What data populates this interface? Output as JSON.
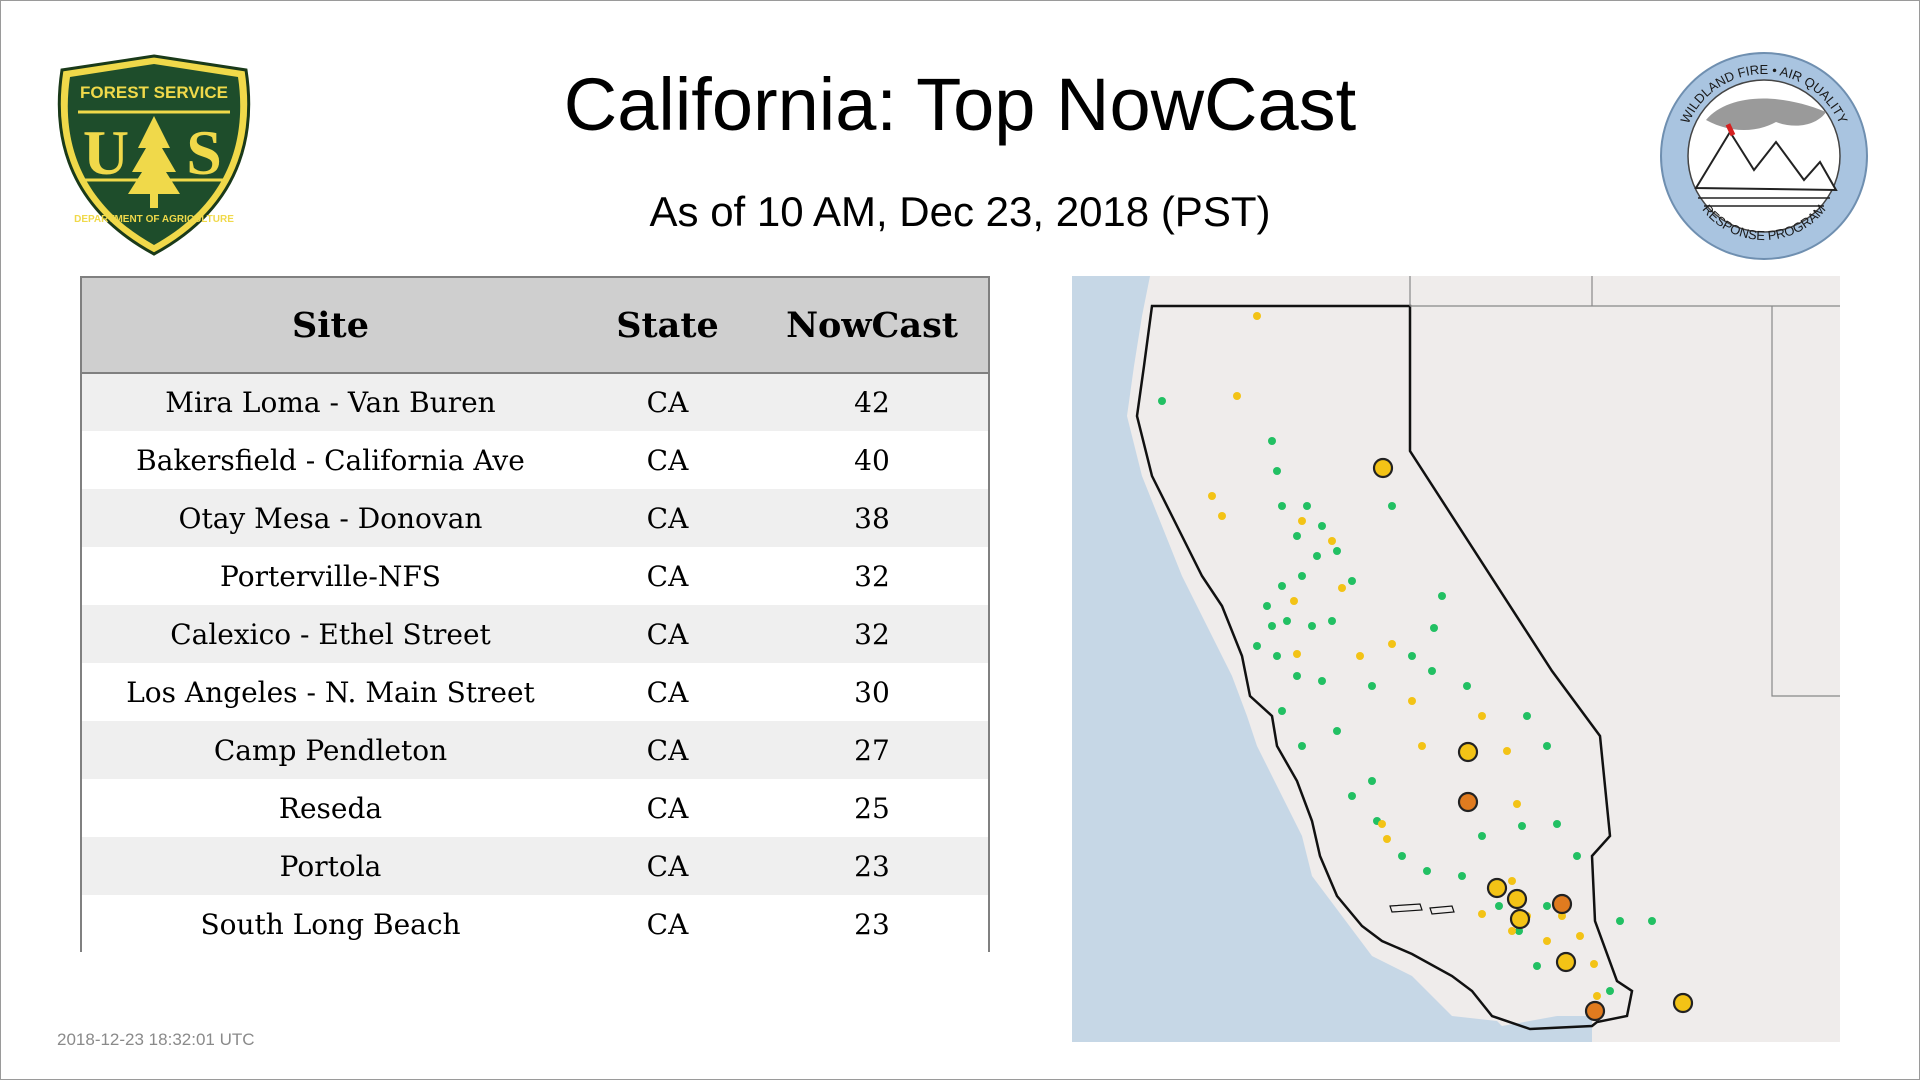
{
  "header": {
    "title": "California: Top NowCast",
    "subtitle": "As of 10 AM, Dec 23, 2018 (PST)"
  },
  "logos": {
    "left": {
      "icon": "us-forest-service-shield-icon",
      "text_top": "FOREST SERVICE",
      "text_mid": "U S",
      "text_bottom": "DEPARTMENT OF AGRICULTURE"
    },
    "right": {
      "icon": "wildland-fire-air-quality-icon",
      "text_top": "WILDLAND FIRE • AIR QUALITY",
      "text_bottom": "RESPONSE PROGRAM"
    }
  },
  "table": {
    "columns": [
      "Site",
      "State",
      "NowCast"
    ],
    "rows": [
      {
        "site": "Mira Loma - Van Buren",
        "state": "CA",
        "nowcast": "42"
      },
      {
        "site": "Bakersfield - California Ave",
        "state": "CA",
        "nowcast": "40"
      },
      {
        "site": "Otay Mesa - Donovan",
        "state": "CA",
        "nowcast": "38"
      },
      {
        "site": "Porterville-NFS",
        "state": "CA",
        "nowcast": "32"
      },
      {
        "site": "Calexico - Ethel Street",
        "state": "CA",
        "nowcast": "32"
      },
      {
        "site": "Los Angeles - N. Main Street",
        "state": "CA",
        "nowcast": "30"
      },
      {
        "site": "Camp Pendleton",
        "state": "CA",
        "nowcast": "27"
      },
      {
        "site": "Reseda",
        "state": "CA",
        "nowcast": "25"
      },
      {
        "site": "Portola",
        "state": "CA",
        "nowcast": "23"
      },
      {
        "site": "South Long Beach",
        "state": "CA",
        "nowcast": "23"
      }
    ]
  },
  "map": {
    "colors": {
      "ocean": "#c6d7e6",
      "land": "#efeceb",
      "good": "#22c063",
      "moderate": "#f3c316",
      "usg": "#e07b1f",
      "outline": "#111111"
    }
  },
  "footer": {
    "timestamp": "2018-12-23 18:32:01 UTC"
  }
}
